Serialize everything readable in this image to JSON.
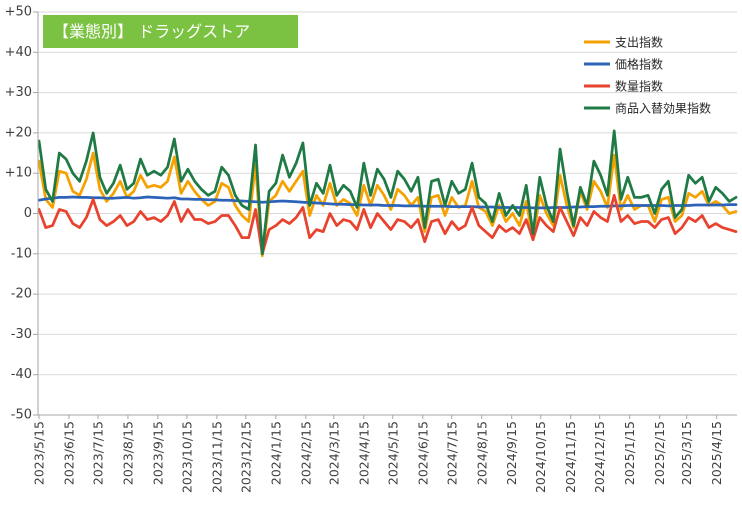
{
  "chart_data": {
    "type": "line",
    "title": "【業態別】 ドラッグストア",
    "xlabel": "",
    "ylabel": "",
    "ylim": [
      -50,
      50
    ],
    "y_ticks": [
      50,
      40,
      30,
      20,
      10,
      0,
      -10,
      -20,
      -30,
      -40,
      -50
    ],
    "y_tick_labels": [
      "+50",
      "+40",
      "+30",
      "+20",
      "+10",
      "0",
      "-10",
      "-20",
      "-30",
      "-40",
      "-50"
    ],
    "x_tick_labels": [
      "2023/5/15",
      "2023/6/15",
      "2023/7/15",
      "2023/8/15",
      "2023/9/15",
      "2023/10/15",
      "2023/11/15",
      "2023/12/15",
      "2024/1/15",
      "2024/2/15",
      "2024/3/15",
      "2024/4/15",
      "2024/5/15",
      "2024/6/15",
      "2024/7/15",
      "2024/8/15",
      "2024/9/15",
      "2024/10/15",
      "2024/11/15",
      "2024/12/15",
      "2025/1/15",
      "2025/2/15",
      "2025/3/15",
      "2025/4/15"
    ],
    "grid": true,
    "legend": "top-right",
    "colors": {
      "title_background": "#7CC242",
      "grid": "#D9D9D9",
      "axis": "#A6A6A6"
    },
    "x": [
      "2023-05-15",
      "2023-05-22",
      "2023-05-29",
      "2023-06-05",
      "2023-06-12",
      "2023-06-19",
      "2023-06-26",
      "2023-07-03",
      "2023-07-10",
      "2023-07-17",
      "2023-07-24",
      "2023-07-31",
      "2023-08-07",
      "2023-08-14",
      "2023-08-21",
      "2023-08-28",
      "2023-09-04",
      "2023-09-11",
      "2023-09-18",
      "2023-09-25",
      "2023-10-02",
      "2023-10-09",
      "2023-10-16",
      "2023-10-23",
      "2023-10-30",
      "2023-11-06",
      "2023-11-13",
      "2023-11-20",
      "2023-11-27",
      "2023-12-04",
      "2023-12-11",
      "2023-12-18",
      "2023-12-25",
      "2024-01-01",
      "2024-01-08",
      "2024-01-15",
      "2024-01-22",
      "2024-01-29",
      "2024-02-05",
      "2024-02-12",
      "2024-02-19",
      "2024-02-26",
      "2024-03-04",
      "2024-03-11",
      "2024-03-18",
      "2024-03-25",
      "2024-04-01",
      "2024-04-08",
      "2024-04-15",
      "2024-04-22",
      "2024-04-29",
      "2024-05-06",
      "2024-05-13",
      "2024-05-20",
      "2024-05-27",
      "2024-06-03",
      "2024-06-10",
      "2024-06-17",
      "2024-06-24",
      "2024-07-01",
      "2024-07-08",
      "2024-07-15",
      "2024-07-22",
      "2024-07-29",
      "2024-08-05",
      "2024-08-12",
      "2024-08-19",
      "2024-08-26",
      "2024-09-02",
      "2024-09-09",
      "2024-09-16",
      "2024-09-23",
      "2024-09-30",
      "2024-10-07",
      "2024-10-14",
      "2024-10-21",
      "2024-10-28",
      "2024-11-04",
      "2024-11-11",
      "2024-11-18",
      "2024-11-25",
      "2024-12-02",
      "2024-12-09",
      "2024-12-16",
      "2024-12-23",
      "2024-12-30",
      "2025-01-06",
      "2025-01-13",
      "2025-01-20",
      "2025-01-27",
      "2025-02-03",
      "2025-02-10",
      "2025-02-17",
      "2025-02-24",
      "2025-03-03",
      "2025-03-10",
      "2025-03-17",
      "2025-03-24",
      "2025-03-31",
      "2025-04-07",
      "2025-04-14",
      "2025-04-21",
      "2025-04-28",
      "2025-05-05"
    ],
    "series": [
      {
        "name": "支出指数",
        "color": "#F5A200",
        "values": [
          13,
          3.5,
          1.5,
          10.5,
          10,
          5.5,
          4.5,
          8.5,
          15,
          6,
          3,
          5,
          8,
          4,
          5.5,
          9.5,
          6.5,
          7,
          6.5,
          8,
          14,
          5,
          8,
          5.5,
          3.5,
          2,
          3,
          7.5,
          6.5,
          2,
          -0.5,
          -2,
          12,
          -10.5,
          3,
          4.5,
          8,
          5.5,
          8,
          10.5,
          -0.5,
          4.5,
          2,
          7.5,
          2,
          3.5,
          2.5,
          -0.5,
          7,
          2,
          7,
          4.5,
          1,
          6,
          4.5,
          2,
          4,
          -4.5,
          4,
          4.5,
          -0.5,
          4,
          1.5,
          2,
          8,
          1.5,
          0.5,
          -3,
          2,
          -2,
          0,
          -3,
          3,
          -6.5,
          4.5,
          0,
          -3,
          9.5,
          2,
          -3.5,
          5.5,
          1,
          8,
          5.5,
          1.5,
          14.5,
          1,
          4.5,
          1,
          2,
          2,
          -2,
          3.5,
          4,
          -2,
          -0.5,
          5,
          4,
          5.5,
          2,
          3,
          2,
          0,
          0.5
        ]
      },
      {
        "name": "価格指数",
        "color": "#2C63B8",
        "values": [
          3.3,
          3.6,
          3.8,
          4.0,
          4.0,
          4.1,
          4.0,
          4.0,
          3.9,
          3.9,
          3.8,
          3.8,
          3.9,
          4.0,
          3.8,
          3.9,
          4.1,
          4.0,
          3.9,
          3.8,
          3.9,
          3.6,
          3.6,
          3.5,
          3.5,
          3.4,
          3.4,
          3.3,
          3.3,
          3.2,
          3.1,
          3.0,
          2.9,
          2.8,
          2.9,
          3.0,
          3.1,
          3.0,
          2.9,
          2.8,
          2.7,
          2.6,
          2.5,
          2.4,
          2.3,
          2.3,
          2.2,
          2.2,
          2.1,
          2.1,
          2.1,
          2.0,
          2.0,
          2.0,
          1.9,
          1.9,
          1.9,
          1.8,
          1.8,
          1.8,
          1.8,
          1.7,
          1.7,
          1.7,
          1.7,
          1.6,
          1.6,
          1.6,
          1.5,
          1.5,
          1.5,
          1.5,
          1.5,
          1.4,
          1.4,
          1.4,
          1.5,
          1.5,
          1.5,
          1.6,
          1.6,
          1.7,
          1.7,
          1.8,
          1.8,
          1.9,
          1.9,
          2.0,
          2.0,
          2.0,
          2.0,
          2.0,
          2.0,
          1.9,
          2.0,
          2.0,
          2.0,
          2.1,
          2.1,
          2.1,
          2.1,
          2.1,
          2.2,
          2.2
        ]
      },
      {
        "name": "数量指数",
        "color": "#E8432E",
        "values": [
          1,
          -3.5,
          -3,
          1,
          0.5,
          -2.5,
          -3.5,
          -1,
          3.5,
          -1.5,
          -3,
          -2,
          -0.5,
          -3,
          -2,
          0.5,
          -1.5,
          -1,
          -2,
          -0.5,
          3,
          -2,
          1,
          -1.5,
          -1.5,
          -2.5,
          -2,
          -0.5,
          -0.5,
          -3,
          -6,
          -6,
          1,
          -10,
          -4,
          -3,
          -1.5,
          -2.5,
          -1,
          1.5,
          -6,
          -4,
          -4.5,
          0,
          -3,
          -1.5,
          -2,
          -4,
          1,
          -3.5,
          0,
          -2,
          -4,
          -1.5,
          -2,
          -3.5,
          -1.5,
          -7,
          -2,
          -1.5,
          -5,
          -2,
          -4,
          -3,
          1.5,
          -3,
          -4.5,
          -6,
          -3,
          -4.5,
          -3.5,
          -5,
          -1.5,
          -6.5,
          -1,
          -3,
          -4.5,
          1.5,
          -2,
          -5.5,
          -1,
          -3,
          0.5,
          -1,
          -2,
          4.5,
          -2,
          -0.5,
          -2.5,
          -2,
          -2,
          -3.5,
          -1.5,
          -1,
          -5,
          -3.5,
          -1,
          -2,
          -0.5,
          -3.5,
          -2.5,
          -3.5,
          -4,
          -4.5
        ]
      },
      {
        "name": "商品入替効果指数",
        "color": "#1F7A45",
        "values": [
          18,
          6,
          3,
          15,
          13.5,
          10,
          8,
          13,
          20,
          9,
          5,
          7.5,
          12,
          6,
          7.5,
          13.5,
          9.5,
          10.5,
          9.5,
          11.5,
          18.5,
          8,
          11,
          8,
          6,
          4.5,
          5.5,
          11.5,
          9.5,
          4.5,
          2,
          1,
          17,
          -10,
          5.5,
          7.5,
          14.5,
          9,
          12.5,
          17.5,
          2,
          7.5,
          5,
          12,
          4.5,
          7,
          5.5,
          1.5,
          12.5,
          4.5,
          11,
          8.5,
          4,
          10.5,
          8.5,
          5.5,
          9,
          -3.5,
          8,
          8.5,
          2,
          8,
          5,
          6,
          12.5,
          4,
          2.5,
          -2,
          5,
          -0.5,
          2,
          -0.5,
          7,
          -5,
          9,
          2,
          -2,
          16,
          5.5,
          -3,
          6.5,
          2,
          13,
          9.5,
          4.5,
          20.5,
          3.5,
          9,
          4,
          4,
          4.5,
          0,
          6,
          8,
          -1,
          1,
          9.5,
          7.5,
          9,
          3,
          6.5,
          5,
          3,
          4
        ]
      }
    ]
  }
}
